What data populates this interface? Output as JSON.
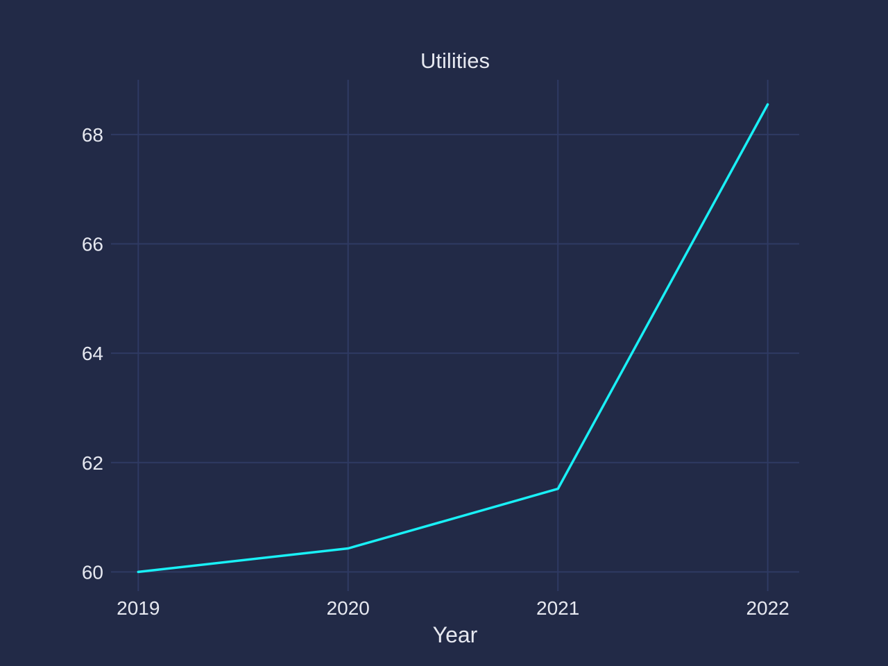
{
  "chart_data": {
    "type": "line",
    "title": "Utilities",
    "xlabel": "Year",
    "ylabel": "",
    "x": [
      2019,
      2020,
      2021,
      2022
    ],
    "series": [
      {
        "values": [
          60.0,
          60.43,
          61.52,
          68.55
        ]
      }
    ],
    "xlim": [
      2018.87,
      2022.15
    ],
    "ylim": [
      59.65,
      69.0
    ],
    "x_ticks": [
      "2019",
      "2020",
      "2021",
      "2022"
    ],
    "y_ticks": [
      60,
      62,
      64,
      66,
      68
    ],
    "grid": true,
    "colors": {
      "background": "#222a47",
      "grid": "#2f3a63",
      "line": "#19f0f6",
      "text": "#e6e8f0"
    }
  }
}
